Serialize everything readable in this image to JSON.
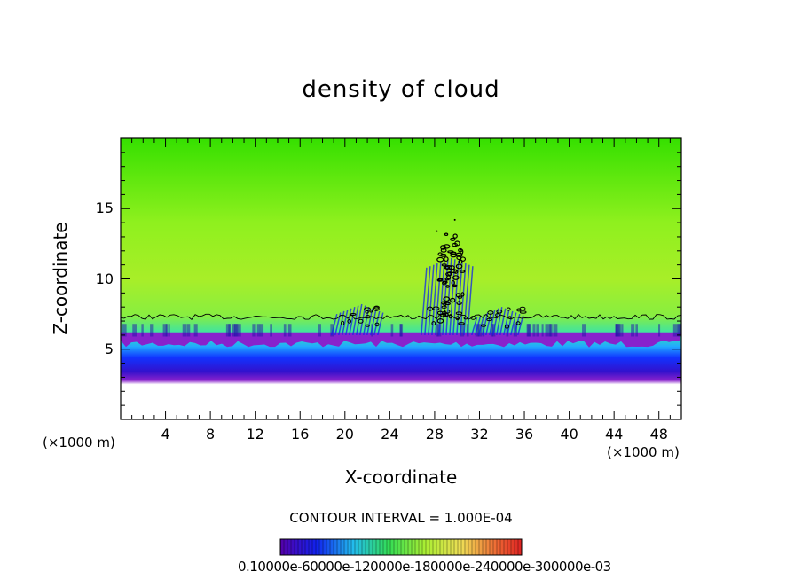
{
  "chart_data": {
    "type": "heatmap",
    "title": "density of cloud",
    "xlabel": "X-coordinate",
    "ylabel": "Z-coordinate",
    "x_unit_label": "(×1000 m)",
    "xlim": [
      0,
      50
    ],
    "ylim": [
      0,
      20
    ],
    "x_ticks": [
      4,
      8,
      12,
      16,
      20,
      24,
      28,
      32,
      36,
      40,
      44,
      48
    ],
    "y_ticks": [
      5,
      10,
      15
    ],
    "contour_interval_label": "CONTOUR INTERVAL = 1.000E-04",
    "colorbar_labels": "0.10000e-60000e-120000e-180000e-240000e-300000e-03",
    "cloud_base_z": 5.5,
    "cloud_layer_top_z": 7.3,
    "cloud_top_z": 19.8,
    "convective_cells": [
      {
        "x": 21.5,
        "z": 7.2
      },
      {
        "x": 29.5,
        "z": 10.5
      },
      {
        "x": 34.0,
        "z": 7.0
      }
    ],
    "grid": false
  },
  "colors": {
    "green_top": "#33dd00",
    "yellow_green": "#99ee22",
    "cyan": "#22ddcc",
    "blue": "#1133ff",
    "purple": "#7722cc"
  }
}
